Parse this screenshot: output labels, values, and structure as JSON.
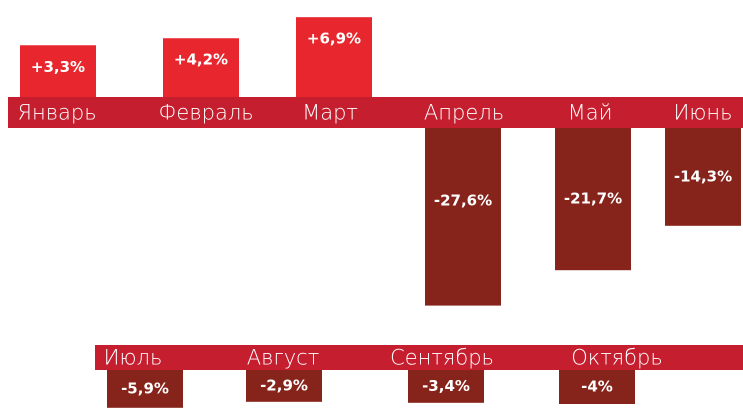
{
  "chart_data": [
    {
      "type": "bar",
      "categories": [
        "Январь",
        "Февраль",
        "Март",
        "Апрель",
        "Май",
        "Июнь"
      ],
      "values": [
        3.3,
        4.2,
        6.9,
        -27.6,
        -21.7,
        -14.3
      ],
      "value_labels": [
        "+3,3%",
        "+4,2%",
        "+6,9%",
        "-27,6%",
        "-21,7%",
        "-14,3%"
      ],
      "positive_color": "#e8262d",
      "negative_color": "#86231a",
      "band_color": "#c41e2f"
    },
    {
      "type": "bar",
      "categories": [
        "Июль",
        "Август",
        "Сентябрь",
        "Октябрь"
      ],
      "values": [
        -5.9,
        -2.9,
        -3.4,
        -4
      ],
      "value_labels": [
        "-5,9%",
        "-2,9%",
        "-3,4%",
        "-4%"
      ],
      "positive_color": "#e8262d",
      "negative_color": "#86231a",
      "band_color": "#c41e2f"
    }
  ]
}
